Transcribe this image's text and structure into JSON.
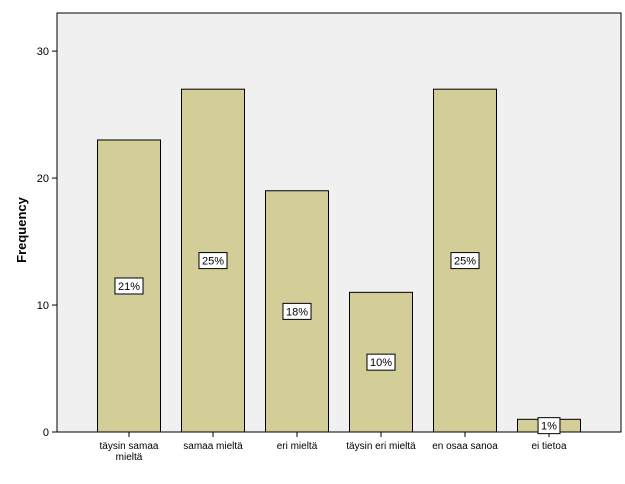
{
  "chart_data": {
    "type": "bar",
    "y_label": "Frequency",
    "categories": [
      "täysin samaa mieltä",
      "samaa mieltä",
      "eri mieltä",
      "täysin eri mieltä",
      "en osaa sanoa",
      "ei tietoa"
    ],
    "values": [
      23,
      27,
      19,
      11,
      27,
      1
    ],
    "percents": [
      21,
      25,
      18,
      10,
      25,
      1
    ],
    "percent_labels": [
      "21%",
      "25%",
      "18%",
      "10%",
      "25%",
      "1%"
    ],
    "color": "#d3cd97",
    "ylim": [
      0,
      33
    ],
    "yticks": [
      0,
      10,
      20,
      30
    ]
  }
}
